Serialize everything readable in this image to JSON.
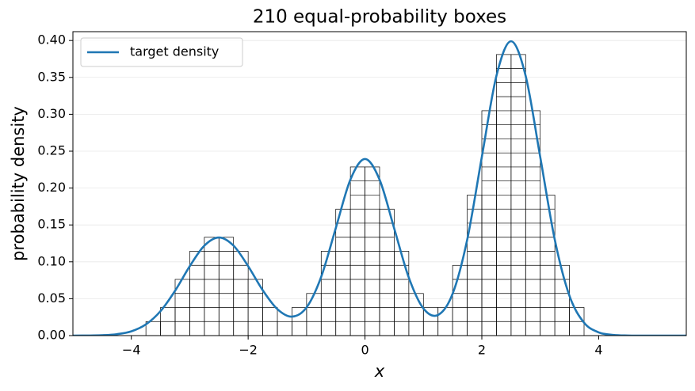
{
  "chart_data": {
    "type": "line",
    "title": "210 equal-probability boxes",
    "xlabel": "x",
    "ylabel": "probability density",
    "x": [
      -5,
      -4.75,
      -4.5,
      -4.25,
      -4,
      -3.75,
      -3.5,
      -3.25,
      -3,
      -2.75,
      -2.5,
      -2.25,
      -2,
      -1.75,
      -1.5,
      -1.25,
      -1,
      -0.75,
      -0.5,
      -0.25,
      0,
      0.25,
      0.5,
      0.75,
      1,
      1.25,
      1.5,
      1.75,
      2,
      2.25,
      2.5,
      2.75,
      3,
      3.25,
      3.5,
      3.75,
      4,
      4.25,
      4.5,
      4.75,
      5,
      5.25,
      5.5
    ],
    "series": [
      {
        "name": "target density",
        "color": "#1f77b4",
        "values": [
          0,
          0.0001,
          0.0005,
          0.0019,
          0.0058,
          0.0152,
          0.0332,
          0.0609,
          0.094,
          0.1219,
          0.133,
          0.1219,
          0.0941,
          0.0614,
          0.0359,
          0.0257,
          0.0382,
          0.0796,
          0.1457,
          0.2114,
          0.2394,
          0.2113,
          0.1453,
          0.0786,
          0.0368,
          0.028,
          0.0567,
          0.1301,
          0.2421,
          0.3521,
          0.399,
          0.3521,
          0.242,
          0.1296,
          0.054,
          0.0175,
          0.0044,
          0.0009,
          0.0001,
          0,
          0,
          0,
          0
        ]
      }
    ],
    "boxes": {
      "bins": [
        -3.75,
        -3.5,
        -3.25,
        -3,
        -2.75,
        -2.5,
        -2.25,
        -2,
        -1.75,
        -1.5,
        -1.25,
        -1,
        -0.75,
        -0.5,
        -0.25,
        0,
        0.25,
        0.5,
        0.75,
        1,
        1.25,
        1.5,
        1.75,
        2,
        2.25,
        2.5,
        2.75,
        3,
        3.25,
        3.5,
        3.75
      ],
      "values": [
        0.019,
        0.0381,
        0.0762,
        0.1143,
        0.1333,
        0.1333,
        0.1143,
        0.0762,
        0.0381,
        0.019,
        0.0381,
        0.0571,
        0.1143,
        0.1714,
        0.2286,
        0.2286,
        0.1714,
        0.1143,
        0.0571,
        0.0381,
        0.0381,
        0.0952,
        0.1905,
        0.3048,
        0.381,
        0.381,
        0.3048,
        0.1905,
        0.0952,
        0.0381
      ],
      "color": "#000000"
    },
    "xlim": [
      -5,
      5.5
    ],
    "ylim": [
      0,
      0.412
    ],
    "xticks": [
      {
        "value": -4,
        "label": "−4"
      },
      {
        "value": -2,
        "label": "−2"
      },
      0,
      2,
      4
    ],
    "yticks": [
      {
        "value": 0,
        "label": "0.00"
      },
      {
        "value": 0.05,
        "label": "0.05"
      },
      {
        "value": 0.1,
        "label": "0.10"
      },
      {
        "value": 0.15,
        "label": "0.15"
      },
      {
        "value": 0.2,
        "label": "0.20"
      },
      {
        "value": 0.25,
        "label": "0.25"
      },
      {
        "value": 0.3,
        "label": "0.30"
      },
      {
        "value": 0.35,
        "label": "0.35"
      },
      {
        "value": 0.4,
        "label": "0.40"
      }
    ],
    "grid": true,
    "legend": "upper left"
  }
}
